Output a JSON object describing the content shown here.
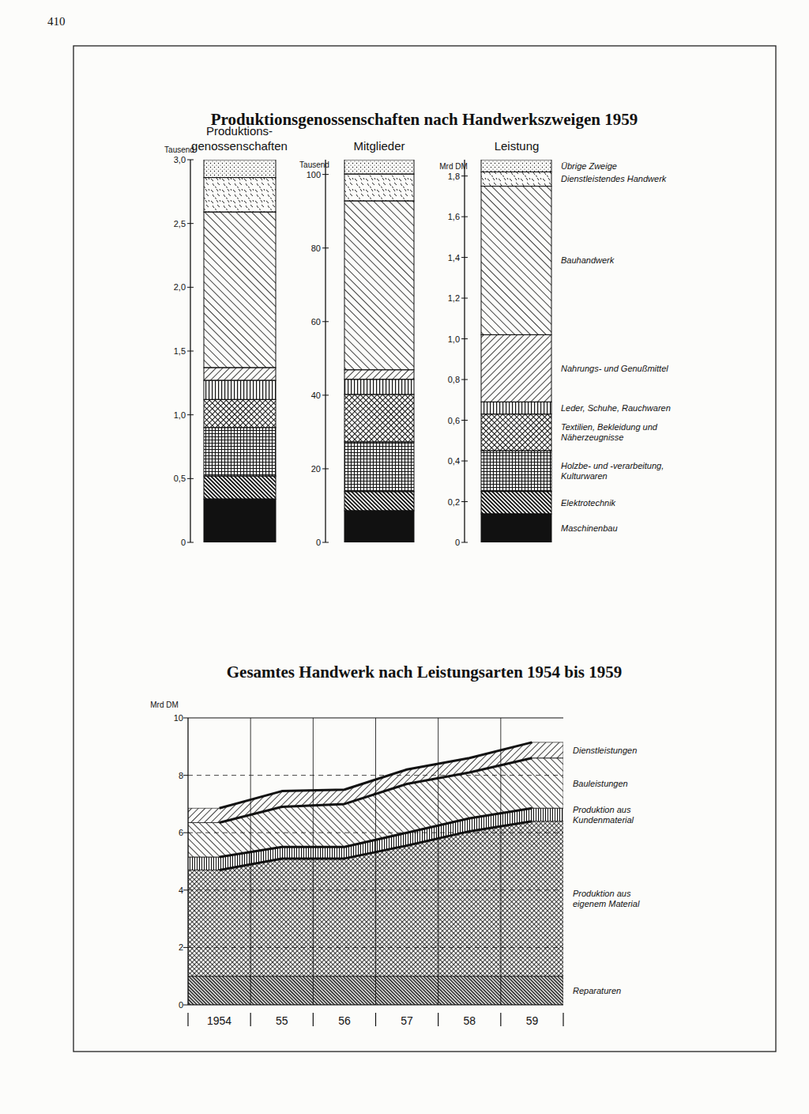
{
  "page_number": "410",
  "chart_data": [
    {
      "type": "bar",
      "stacked": true,
      "title": "Produktionsgenossenschaften nach Handwerkszweigen 1959",
      "subtitle": "Produktions- genossenschaften",
      "y_label": "Tausend",
      "ylim": [
        0,
        3
      ],
      "yticks": [
        0,
        {
          "value": 0.5,
          "label": "0,5"
        },
        {
          "value": 1,
          "label": "1,0"
        },
        {
          "value": 1.5,
          "label": "1,5"
        },
        {
          "value": 2,
          "label": "2,0"
        },
        {
          "value": 2.5,
          "label": "2,5"
        },
        {
          "value": 3,
          "label": "3,0"
        }
      ],
      "series": [
        {
          "values": [
            0.34
          ]
        },
        {
          "values": [
            0.18
          ]
        },
        {
          "values": [
            0.38
          ]
        },
        {
          "values": [
            0.22
          ]
        },
        {
          "values": [
            0.15
          ]
        },
        {
          "values": [
            0.1
          ]
        },
        {
          "values": [
            1.22
          ]
        },
        {
          "values": [
            0.27
          ]
        },
        {
          "values": [
            0.14
          ]
        }
      ]
    },
    {
      "type": "bar",
      "stacked": true,
      "subtitle": "Mitglieder",
      "y_label": "Tausend",
      "ylim": [
        0,
        104
      ],
      "yticks": [
        0,
        20,
        40,
        60,
        80,
        100
      ],
      "series": [
        {
          "values": [
            8.6
          ]
        },
        {
          "values": [
            5.2
          ]
        },
        {
          "values": [
            13.5
          ]
        },
        {
          "values": [
            12.9
          ]
        },
        {
          "values": [
            4.1
          ]
        },
        {
          "values": [
            2.6
          ]
        },
        {
          "values": [
            45.9
          ]
        },
        {
          "values": [
            7.3
          ]
        },
        {
          "values": [
            3.9
          ]
        }
      ]
    },
    {
      "type": "bar",
      "stacked": true,
      "subtitle": "Leistung",
      "y_label": "Mrd DM",
      "ylim": [
        0,
        1.88
      ],
      "yticks": [
        0,
        {
          "value": 0.2,
          "label": "0,2"
        },
        {
          "value": 0.4,
          "label": "0,4"
        },
        {
          "value": 0.6,
          "label": "0,6"
        },
        {
          "value": 0.8,
          "label": "0,8"
        },
        {
          "value": 1,
          "label": "1,0"
        },
        {
          "value": 1.2,
          "label": "1,2"
        },
        {
          "value": 1.4,
          "label": "1,4"
        },
        {
          "value": 1.6,
          "label": "1,6"
        },
        {
          "value": 1.8,
          "label": "1,8"
        }
      ],
      "legend": "right",
      "series": [
        {
          "name": "Maschinenbau",
          "values": [
            0.14
          ]
        },
        {
          "name": "Elektrotechnik",
          "values": [
            0.11
          ]
        },
        {
          "name": "Holzbe- und -verarbeitung, Kulturwaren",
          "values": [
            0.2
          ]
        },
        {
          "name": "Textilien, Bekleidung und Näherzeugnisse",
          "values": [
            0.18
          ]
        },
        {
          "name": "Leder, Schuhe, Rauchwaren",
          "values": [
            0.06
          ]
        },
        {
          "name": "Nahrungs- und Genußmittel",
          "values": [
            0.33
          ]
        },
        {
          "name": "Bauhandwerk",
          "values": [
            0.73
          ]
        },
        {
          "name": "Dienstleistendes Handwerk",
          "values": [
            0.07
          ]
        },
        {
          "name": "Übrige Zweige",
          "values": [
            0.06
          ]
        }
      ]
    },
    {
      "type": "area",
      "stacked": true,
      "title": "Gesamtes Handwerk nach Leistungsarten 1954 bis 1959",
      "y_label": "Mrd DM",
      "categories": [
        "1954",
        "55",
        "56",
        "57",
        "58",
        "59"
      ],
      "ylim": [
        0,
        10
      ],
      "yticks": [
        0,
        2,
        4,
        6,
        8,
        10
      ],
      "grid": true,
      "legend": "right",
      "series": [
        {
          "name": "Reparaturen",
          "values": [
            1.0,
            1.0,
            1.0,
            1.0,
            1.0,
            1.0
          ]
        },
        {
          "name": "Produktion aus eigenem Material",
          "values": [
            3.7,
            4.1,
            4.1,
            4.55,
            5.05,
            5.4
          ]
        },
        {
          "name": "Produktion aus Kundenmaterial",
          "values": [
            0.45,
            0.4,
            0.4,
            0.45,
            0.45,
            0.45
          ]
        },
        {
          "name": "Bauleistungen",
          "values": [
            1.2,
            1.4,
            1.5,
            1.7,
            1.6,
            1.75
          ]
        },
        {
          "name": "Dienstleistungen",
          "values": [
            0.5,
            0.55,
            0.5,
            0.5,
            0.5,
            0.55
          ]
        }
      ]
    }
  ]
}
